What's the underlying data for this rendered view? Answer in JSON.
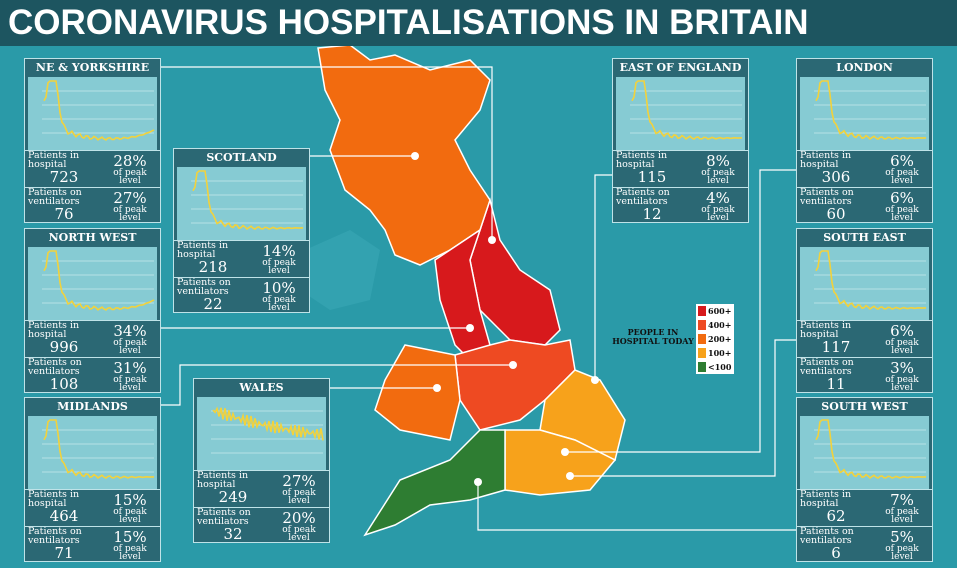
{
  "title": "CORONAVIRUS HOSPITALISATIONS IN BRITAIN",
  "labels": {
    "hospital": "Patients in hospital",
    "ventilators": "Patients on ventilators",
    "of_peak": "of peak level"
  },
  "legend": {
    "title": "PEOPLE IN HOSPITAL TODAY",
    "items": [
      {
        "label": "600+",
        "color": "#d7191c"
      },
      {
        "label": "400+",
        "color": "#ee4a22"
      },
      {
        "label": "200+",
        "color": "#f26b0f"
      },
      {
        "label": "100+",
        "color": "#f7a21b"
      },
      {
        "label": "<100",
        "color": "#2e7d32"
      }
    ]
  },
  "regions": [
    {
      "name": "NE & YORKSHIRE",
      "hospital": 723,
      "hospital_pct": "28%",
      "ventilators": 76,
      "ventilators_pct": "27%",
      "color": "#d7191c"
    },
    {
      "name": "SCOTLAND",
      "hospital": 218,
      "hospital_pct": "14%",
      "ventilators": 22,
      "ventilators_pct": "10%",
      "color": "#f26b0f"
    },
    {
      "name": "NORTH WEST",
      "hospital": 996,
      "hospital_pct": "34%",
      "ventilators": 108,
      "ventilators_pct": "31%",
      "color": "#d7191c"
    },
    {
      "name": "MIDLANDS",
      "hospital": 464,
      "hospital_pct": "15%",
      "ventilators": 71,
      "ventilators_pct": "15%",
      "color": "#ee4a22"
    },
    {
      "name": "WALES",
      "hospital": 249,
      "hospital_pct": "27%",
      "ventilators": 32,
      "ventilators_pct": "20%",
      "color": "#f26b0f"
    },
    {
      "name": "EAST OF ENGLAND",
      "hospital": 115,
      "hospital_pct": "8%",
      "ventilators": 12,
      "ventilators_pct": "4%",
      "color": "#f7a21b"
    },
    {
      "name": "LONDON",
      "hospital": 306,
      "hospital_pct": "6%",
      "ventilators": 60,
      "ventilators_pct": "6%",
      "color": "#f26b0f"
    },
    {
      "name": "SOUTH EAST",
      "hospital": 117,
      "hospital_pct": "6%",
      "ventilators": 11,
      "ventilators_pct": "3%",
      "color": "#f7a21b"
    },
    {
      "name": "SOUTH WEST",
      "hospital": 62,
      "hospital_pct": "7%",
      "ventilators": 6,
      "ventilators_pct": "5%",
      "color": "#2e7d32"
    }
  ]
}
